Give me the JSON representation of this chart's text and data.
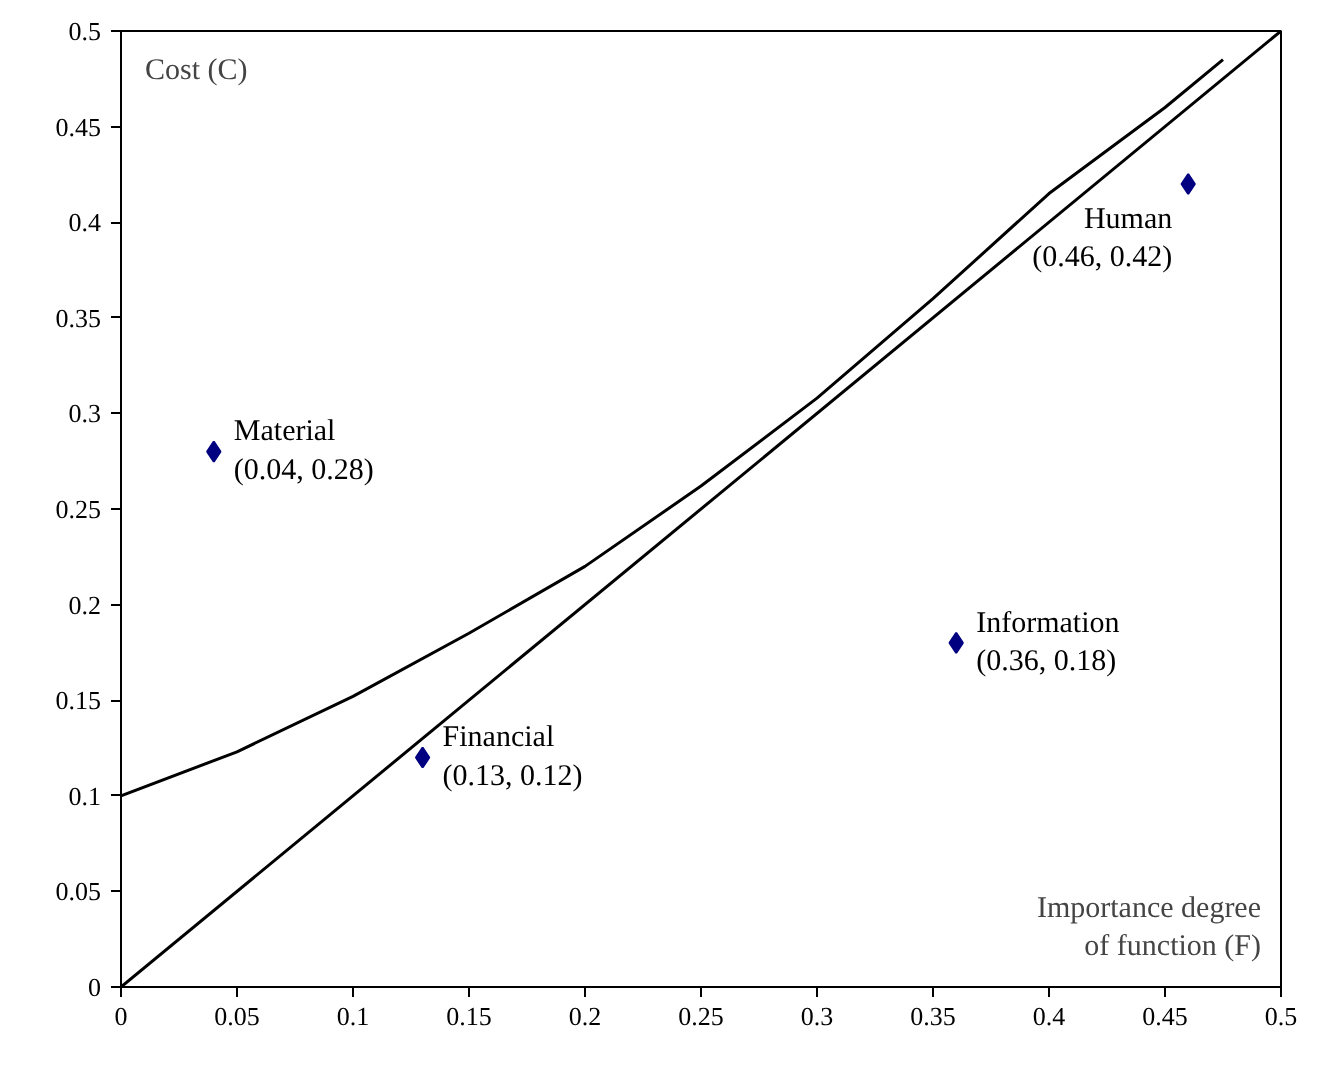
{
  "chart_data": {
    "type": "scatter",
    "xlabel": "Importance degree\nof function (F)",
    "ylabel": "Cost (C)",
    "xlim": [
      0,
      0.5
    ],
    "ylim": [
      0,
      0.5
    ],
    "xticks": [
      0,
      0.05,
      0.1,
      0.15,
      0.2,
      0.25,
      0.3,
      0.35,
      0.4,
      0.45,
      0.5
    ],
    "yticks": [
      0,
      0.05,
      0.1,
      0.15,
      0.2,
      0.25,
      0.3,
      0.35,
      0.4,
      0.45,
      0.5
    ],
    "grid": false,
    "series": [
      {
        "marker": "diamond",
        "color": "#000080",
        "x": [
          0.04,
          0.13,
          0.36,
          0.46
        ],
        "values": [
          0.28,
          0.12,
          0.18,
          0.42
        ]
      },
      {
        "type": "line",
        "color": "#000000",
        "x": [
          0,
          0.5
        ],
        "values": [
          0,
          0.5
        ]
      },
      {
        "type": "line",
        "color": "#000000",
        "x": [
          0,
          0.05,
          0.1,
          0.15,
          0.2,
          0.25,
          0.3,
          0.35,
          0.4,
          0.45,
          0.475
        ],
        "values": [
          0.1,
          0.123,
          0.152,
          0.185,
          0.22,
          0.262,
          0.308,
          0.36,
          0.415,
          0.46,
          0.485
        ]
      }
    ],
    "annotations": [
      {
        "text": "Material\n(0.04, 0.28)",
        "x": 0.04,
        "y": 0.28
      },
      {
        "text": "Financial\n(0.13, 0.12)",
        "x": 0.13,
        "y": 0.12
      },
      {
        "text": "Information\n(0.36, 0.18)",
        "x": 0.36,
        "y": 0.18
      },
      {
        "text": "Human\n(0.46, 0.42)",
        "x": 0.46,
        "y": 0.42
      }
    ]
  }
}
